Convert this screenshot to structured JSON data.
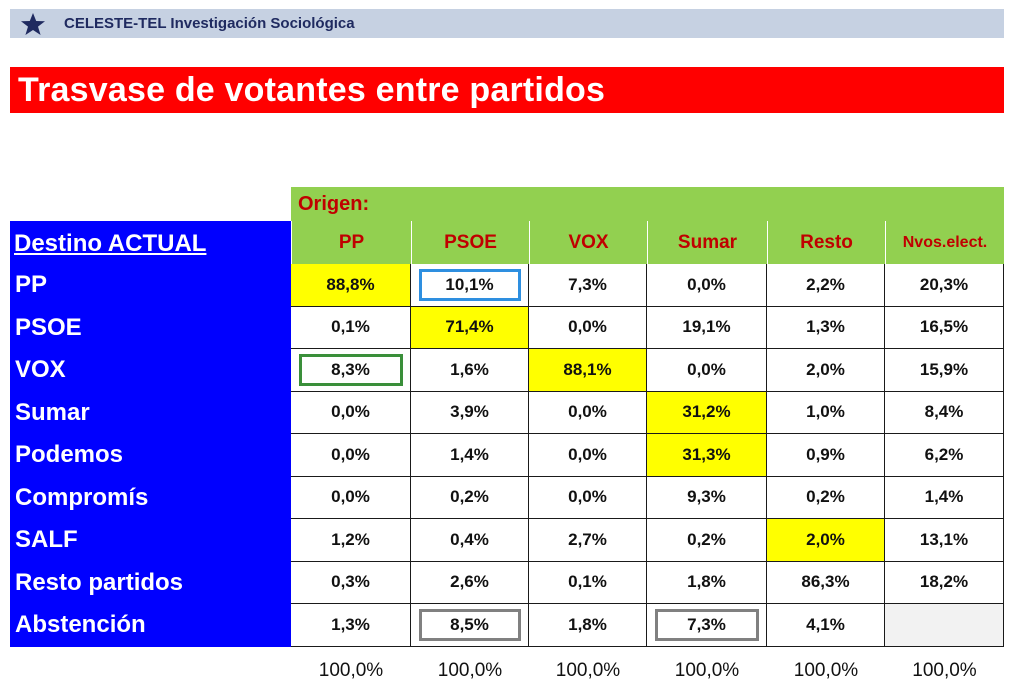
{
  "header": {
    "brand": "CELESTE-TEL Investigación Sociológica",
    "icon": "star-icon",
    "bar_color": "#c6d1e2"
  },
  "title": "Trasvase de votantes entre partidos",
  "origen_label": "Origen:",
  "destino_heading": "Destino ACTUAL",
  "columns": [
    "PP",
    "PSOE",
    "VOX",
    "Sumar",
    "Resto",
    "Nvos.elect."
  ],
  "rows": [
    {
      "label": "PP",
      "values": [
        "88,8%",
        "10,1%",
        "7,3%",
        "0,0%",
        "2,2%",
        "20,3%"
      ]
    },
    {
      "label": "PSOE",
      "values": [
        "0,1%",
        "71,4%",
        "0,0%",
        "19,1%",
        "1,3%",
        "16,5%"
      ]
    },
    {
      "label": "VOX",
      "values": [
        "8,3%",
        "1,6%",
        "88,1%",
        "0,0%",
        "2,0%",
        "15,9%"
      ]
    },
    {
      "label": "Sumar",
      "values": [
        "0,0%",
        "3,9%",
        "0,0%",
        "31,2%",
        "1,0%",
        "8,4%"
      ]
    },
    {
      "label": "Podemos",
      "values": [
        "0,0%",
        "1,4%",
        "0,0%",
        "31,3%",
        "0,9%",
        "6,2%"
      ]
    },
    {
      "label": "Compromís",
      "values": [
        "0,0%",
        "0,2%",
        "0,0%",
        "9,3%",
        "0,2%",
        "1,4%"
      ]
    },
    {
      "label": "SALF",
      "values": [
        "1,2%",
        "0,4%",
        "2,7%",
        "0,2%",
        "2,0%",
        "13,1%"
      ]
    },
    {
      "label": "Resto partidos",
      "values": [
        "0,3%",
        "2,6%",
        "0,1%",
        "1,8%",
        "86,3%",
        "18,2%"
      ]
    },
    {
      "label": "Abstención",
      "values": [
        "1,3%",
        "8,5%",
        "1,8%",
        "7,3%",
        "4,1%",
        ""
      ]
    }
  ],
  "totals": [
    "100,0%",
    "100,0%",
    "100,0%",
    "100,0%",
    "100,0%",
    "100,0%"
  ],
  "highlighted_cells": [
    [
      0,
      0
    ],
    [
      1,
      1
    ],
    [
      2,
      2
    ],
    [
      3,
      3
    ],
    [
      4,
      3
    ],
    [
      6,
      4
    ]
  ],
  "boxed_cells": [
    {
      "row": 0,
      "col": 1,
      "color": "#2e8fe0"
    },
    {
      "row": 2,
      "col": 0,
      "color": "#3a8f3a"
    },
    {
      "row": 8,
      "col": 1,
      "color": "#808080"
    },
    {
      "row": 8,
      "col": 3,
      "color": "#808080"
    }
  ],
  "empty_cells": [
    [
      8,
      5
    ]
  ],
  "colors": {
    "title_bg": "#ff0000",
    "origen_bg": "#92d050",
    "origen_text": "#c00000",
    "destino_bg": "#0000ff",
    "highlight": "#ffff00"
  }
}
